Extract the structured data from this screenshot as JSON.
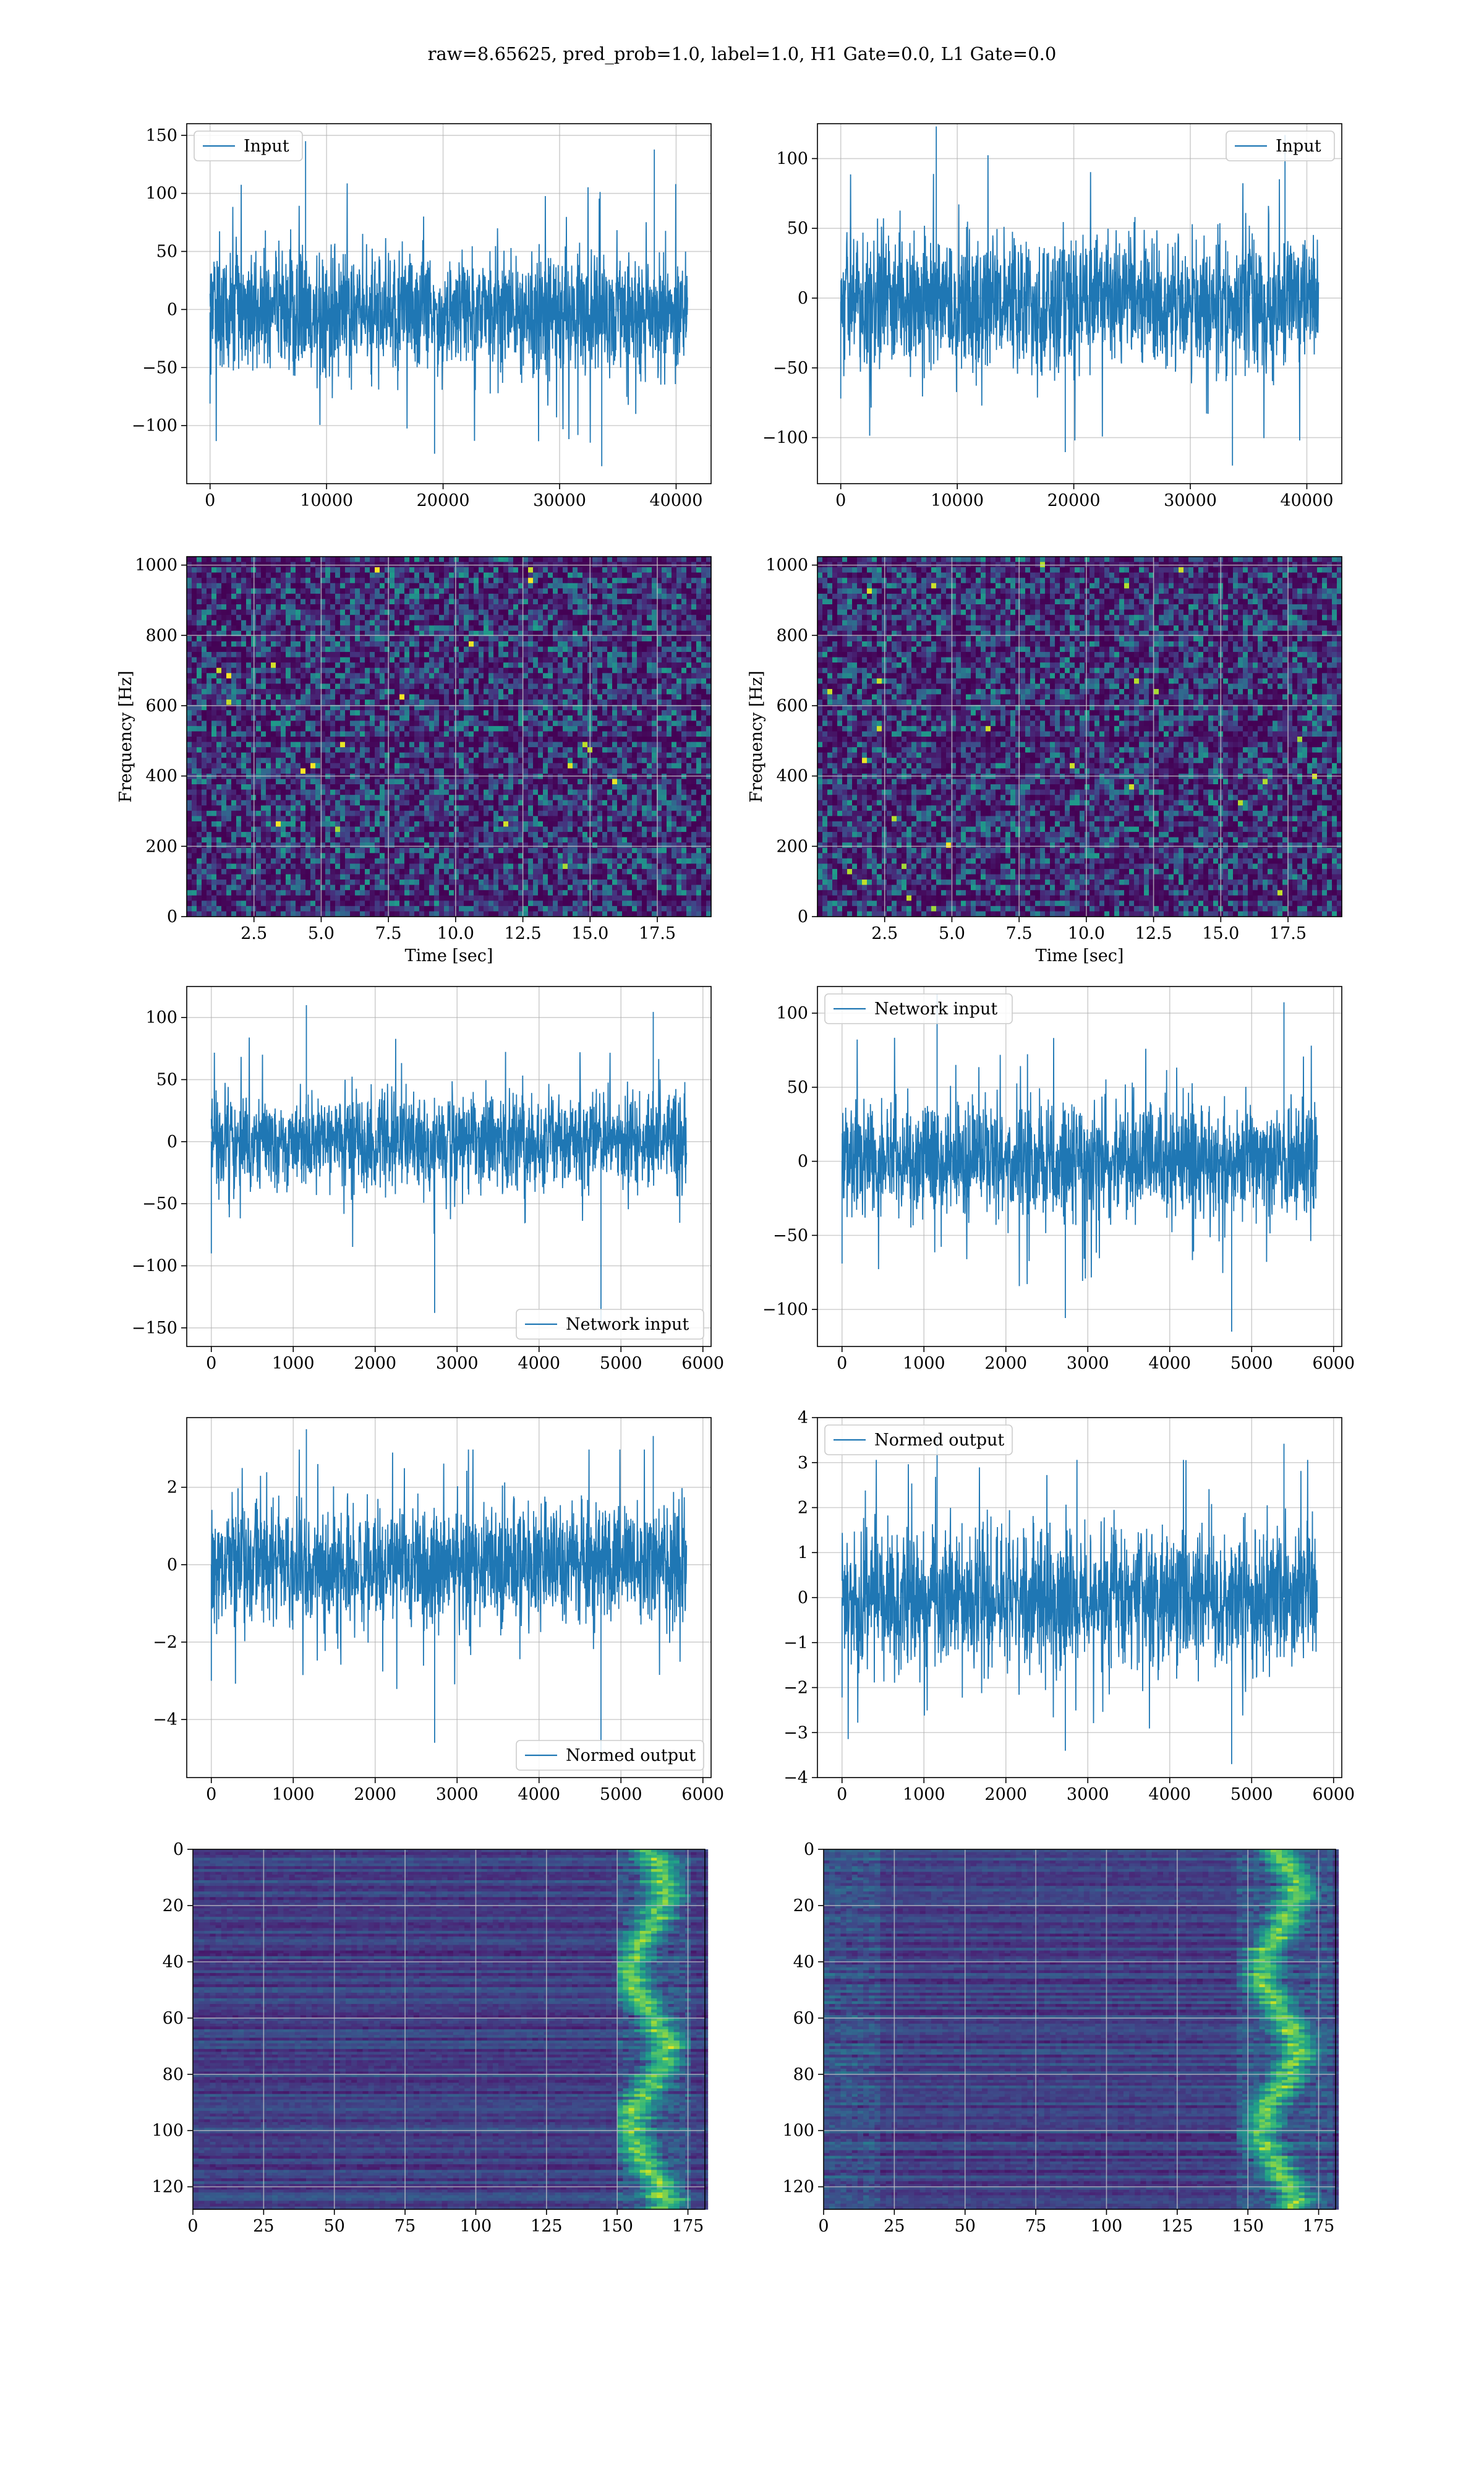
{
  "suptitle": "raw=8.65625, pred_prob=1.0, label=1.0, H1 Gate=0.0, L1 Gate=0.0",
  "colors": {
    "line": "#1f77b4",
    "grid": "#b0b0b0",
    "viridis_dark": "#440154"
  },
  "chart_data": [
    {
      "id": "p1",
      "type": "line",
      "legend": "Input",
      "legend_loc": "upper left",
      "xlim": [
        -2000,
        43000
      ],
      "ylim": [
        -150,
        160
      ],
      "xticks": [
        0,
        10000,
        20000,
        30000,
        40000
      ],
      "yticks": [
        -100,
        -50,
        0,
        50,
        100,
        150
      ],
      "series": [
        {
          "name": "Input",
          "x_range": [
            0,
            41000
          ],
          "band": [
            -70,
            65
          ],
          "extremes": [
            -135,
            145
          ]
        }
      ],
      "grid": true
    },
    {
      "id": "p2",
      "type": "line",
      "legend": "Input",
      "legend_loc": "upper right",
      "xlim": [
        -2000,
        43000
      ],
      "ylim": [
        -133,
        125
      ],
      "xticks": [
        0,
        10000,
        20000,
        30000,
        40000
      ],
      "yticks": [
        -100,
        -50,
        0,
        50,
        100
      ],
      "series": [
        {
          "name": "Input",
          "x_range": [
            0,
            41000
          ],
          "band": [
            -65,
            60
          ],
          "extremes": [
            -120,
            123
          ]
        }
      ],
      "grid": true
    },
    {
      "id": "p3",
      "type": "heatmap",
      "xlabel": "Time [sec]",
      "ylabel": "Frequency [Hz]",
      "xlim": [
        0,
        19.5
      ],
      "ylim": [
        0,
        1024
      ],
      "xticks": [
        2.5,
        5.0,
        7.5,
        10.0,
        12.5,
        15.0,
        17.5
      ],
      "yticks": [
        0,
        200,
        400,
        600,
        800,
        1000
      ],
      "colormap": "viridis",
      "grid": true
    },
    {
      "id": "p4",
      "type": "heatmap",
      "xlabel": "Time [sec]",
      "ylabel": "Frequency [Hz]",
      "xlim": [
        0,
        19.5
      ],
      "ylim": [
        0,
        1024
      ],
      "xticks": [
        2.5,
        5.0,
        7.5,
        10.0,
        12.5,
        15.0,
        17.5
      ],
      "yticks": [
        0,
        200,
        400,
        600,
        800,
        1000
      ],
      "colormap": "viridis",
      "grid": true
    },
    {
      "id": "p5",
      "type": "line",
      "legend": "Network input",
      "legend_loc": "lower right",
      "xlim": [
        -300,
        6100
      ],
      "ylim": [
        -165,
        125
      ],
      "xticks": [
        0,
        1000,
        2000,
        3000,
        4000,
        5000,
        6000
      ],
      "yticks": [
        -150,
        -100,
        -50,
        0,
        50,
        100
      ],
      "series": [
        {
          "name": "Network input",
          "x_range": [
            0,
            5800
          ],
          "band": [
            -50,
            50
          ],
          "extremes": [
            -150,
            110
          ]
        }
      ],
      "grid": true
    },
    {
      "id": "p6",
      "type": "line",
      "legend": "Network input",
      "legend_loc": "upper left",
      "xlim": [
        -300,
        6100
      ],
      "ylim": [
        -125,
        118
      ],
      "xticks": [
        0,
        1000,
        2000,
        3000,
        4000,
        5000,
        6000
      ],
      "yticks": [
        -100,
        -50,
        0,
        50,
        100
      ],
      "series": [
        {
          "name": "Network input",
          "x_range": [
            0,
            5800
          ],
          "band": [
            -50,
            50
          ],
          "extremes": [
            -115,
            113
          ]
        }
      ],
      "grid": true
    },
    {
      "id": "p7",
      "type": "line",
      "legend": "Normed output",
      "legend_loc": "lower right",
      "xlim": [
        -300,
        6100
      ],
      "ylim": [
        -5.5,
        3.8
      ],
      "xticks": [
        0,
        1000,
        2000,
        3000,
        4000,
        5000,
        6000
      ],
      "yticks": [
        -4,
        -2,
        0,
        2
      ],
      "series": [
        {
          "name": "Normed output",
          "x_range": [
            0,
            5800
          ],
          "band": [
            -2.0,
            2.0
          ],
          "extremes": [
            -5.0,
            3.5
          ]
        }
      ],
      "grid": true
    },
    {
      "id": "p8",
      "type": "line",
      "legend": "Normed output",
      "legend_loc": "upper left",
      "xlim": [
        -300,
        6100
      ],
      "ylim": [
        -4,
        4
      ],
      "xticks": [
        0,
        1000,
        2000,
        3000,
        4000,
        5000,
        6000
      ],
      "yticks": [
        -4,
        -3,
        -2,
        -1,
        0,
        1,
        2,
        3,
        4
      ],
      "series": [
        {
          "name": "Normed output",
          "x_range": [
            0,
            5800
          ],
          "band": [
            -2.0,
            2.0
          ],
          "extremes": [
            -3.7,
            3.6
          ]
        }
      ],
      "grid": true
    },
    {
      "id": "p9",
      "type": "heatmap",
      "xlim": [
        0,
        181
      ],
      "ylim": [
        128,
        0
      ],
      "xticks": [
        0,
        25,
        50,
        75,
        100,
        125,
        150,
        175
      ],
      "yticks": [
        0,
        20,
        40,
        60,
        80,
        100,
        120
      ],
      "colormap": "viridis",
      "bright_column_range": [
        150,
        175
      ],
      "grid": true
    },
    {
      "id": "p10",
      "type": "heatmap",
      "xlim": [
        0,
        181
      ],
      "ylim": [
        128,
        0
      ],
      "xticks": [
        0,
        25,
        50,
        75,
        100,
        125,
        150,
        175
      ],
      "yticks": [
        0,
        20,
        40,
        60,
        80,
        100,
        120
      ],
      "colormap": "viridis",
      "bright_column_range": [
        145,
        178
      ],
      "grid": true
    }
  ]
}
